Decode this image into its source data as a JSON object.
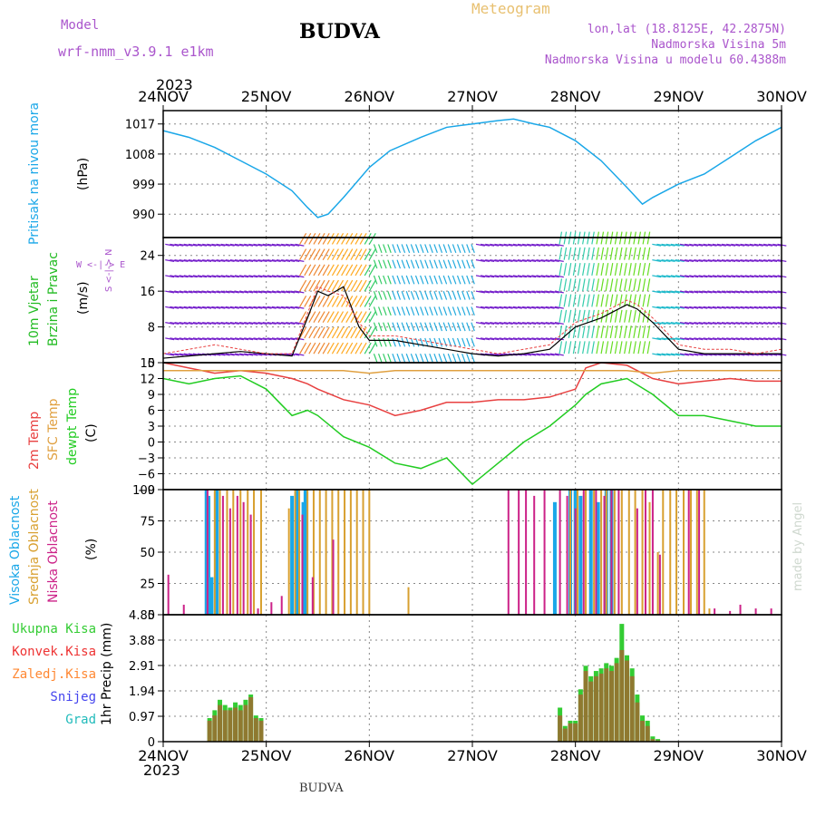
{
  "header": {
    "model_label": "Model",
    "model_name": "wrf-nmm_v3.9.1 e1km",
    "title": "BUDVA",
    "meteogram_label": "Meteogram",
    "lonlat": "lon,lat (18.8125E, 42.2875N)",
    "altitude": "Nadmorska Visina 5m",
    "model_altitude": "Nadmorska Visina u modelu 60.4388m",
    "footer_title": "BUDVA",
    "watermark": "made by Angel"
  },
  "colors": {
    "pressure": "#1aa7e8",
    "wind_label": "#22bb22",
    "temp2m": "#e84040",
    "sfc": "#e0a040",
    "dewpt": "#22cc22",
    "high_cloud": "#1aa7e8",
    "mid_cloud": "#d8a030",
    "low_cloud": "#cc2288",
    "total_precip": "#33cc33",
    "conv_precip": "#ee3333",
    "freezing": "#ff8833",
    "snow": "#4444ee",
    "hail": "#22bbbb",
    "model_text": "#aa55cc",
    "meteogram_text": "#e8c070"
  },
  "chart_data": [
    {
      "type": "line",
      "panel": "pressure",
      "ylabel_main": "Pritisak na nivou mora",
      "ylabel_unit": "(hPa)",
      "year_top": "2023",
      "year_bottom": "2023",
      "x_ticks": [
        "24NOV",
        "25NOV",
        "26NOV",
        "27NOV",
        "28NOV",
        "29NOV",
        "30NOV"
      ],
      "yticks": [
        "1017",
        "1008",
        "999",
        "990"
      ],
      "ylim": [
        983,
        1021
      ],
      "x": [
        0,
        0.25,
        0.5,
        0.75,
        1.0,
        1.25,
        1.4,
        1.5,
        1.6,
        1.75,
        2.0,
        2.2,
        2.5,
        2.75,
        3.0,
        3.25,
        3.4,
        3.6,
        3.75,
        4.0,
        4.25,
        4.5,
        4.65,
        4.75,
        5.0,
        5.25,
        5.5,
        5.75,
        6.0
      ],
      "values": [
        1015,
        1013,
        1010,
        1006,
        1002,
        997,
        992,
        989,
        990,
        995,
        1004,
        1009,
        1013,
        1016,
        1017,
        1018,
        1018.5,
        1017,
        1016,
        1012,
        1006,
        998,
        993,
        995,
        999,
        1002,
        1007,
        1012,
        1016
      ]
    },
    {
      "type": "line",
      "panel": "wind",
      "ylabel_main": "10m Vjetar",
      "ylabel_sub": "Brzina i Pravac",
      "ylabel_unit": "(m/s)",
      "compass": "W <-|-> E",
      "compass_v": "S <-|-> N",
      "yticks": [
        "24",
        "16",
        "8",
        "0"
      ],
      "ylim": [
        0,
        28
      ],
      "x": [
        0,
        0.25,
        0.5,
        0.75,
        1.0,
        1.25,
        1.4,
        1.5,
        1.6,
        1.75,
        1.9,
        2.0,
        2.25,
        2.5,
        2.75,
        3.0,
        3.25,
        3.5,
        3.75,
        4.0,
        4.25,
        4.5,
        4.6,
        4.75,
        5.0,
        5.25,
        5.5,
        5.75,
        6.0
      ],
      "series": [
        {
          "values": [
            1,
            1.5,
            2,
            2.5,
            2,
            1.5,
            10,
            16,
            15,
            17,
            8,
            5,
            5,
            4,
            3,
            2,
            1.5,
            2,
            3,
            8,
            10,
            13,
            12,
            9,
            3,
            2,
            2,
            2,
            2
          ]
        },
        {
          "values": [
            2,
            3,
            4,
            3,
            2,
            2,
            11,
            17,
            16,
            15,
            9,
            6,
            6,
            5,
            4,
            3,
            2,
            3,
            4,
            9,
            11,
            14,
            13,
            10,
            4,
            3,
            3,
            2,
            3
          ]
        }
      ]
    },
    {
      "type": "line",
      "panel": "temperature",
      "ylabel_a": "2m Temp",
      "ylabel_b": "SFC Temp",
      "ylabel_c": "dewpt Temp",
      "ylabel_unit": "(C)",
      "yticks": [
        "15",
        "12",
        "9",
        "6",
        "3",
        "0",
        "-3",
        "-6",
        "-9"
      ],
      "ylim": [
        -9,
        15
      ],
      "x": [
        0,
        0.25,
        0.5,
        0.75,
        1.0,
        1.25,
        1.4,
        1.5,
        1.75,
        2.0,
        2.25,
        2.5,
        2.75,
        3.0,
        3.25,
        3.5,
        3.75,
        4.0,
        4.1,
        4.25,
        4.5,
        4.75,
        5.0,
        5.25,
        5.5,
        5.75,
        6.0
      ],
      "series": [
        {
          "name": "2m",
          "values": [
            15,
            14,
            13,
            13.5,
            13,
            12,
            11,
            10,
            8,
            7,
            5,
            6,
            7.5,
            7.5,
            8,
            8,
            8.5,
            10,
            14,
            15,
            14.5,
            12,
            11,
            11.5,
            12,
            11.5,
            11.5
          ]
        },
        {
          "name": "sfc",
          "values": [
            13.5,
            13.5,
            13.5,
            13.5,
            13.5,
            13.5,
            13.5,
            13.5,
            13.5,
            13,
            13.5,
            13.5,
            13.5,
            13.5,
            13.5,
            13.5,
            13.5,
            13.5,
            13.5,
            13.5,
            13.5,
            13,
            13.5,
            13.5,
            13.5,
            13.5,
            13.5
          ]
        },
        {
          "name": "dew",
          "values": [
            12,
            11,
            12,
            12.5,
            10,
            5,
            6,
            5,
            1,
            -1,
            -4,
            -5,
            -3,
            -8,
            -4,
            0,
            3,
            7,
            9,
            11,
            12,
            9,
            5,
            5,
            4,
            3,
            3
          ]
        }
      ]
    },
    {
      "type": "bar",
      "panel": "cloud",
      "ylabel_a": "Visoka Oblacnost",
      "ylabel_b": "Srednja Oblacnost",
      "ylabel_c": "Niska Oblacnost",
      "ylabel_unit": "(%)",
      "yticks": [
        "100",
        "75",
        "50",
        "25",
        "0"
      ],
      "ylim": [
        0,
        100
      ],
      "series": [
        {
          "name": "high",
          "x": [
            0.42,
            0.44,
            0.47,
            0.52,
            1.25,
            1.3,
            1.36,
            1.38,
            3.8,
            3.95,
            4.0,
            4.05,
            4.15,
            4.22,
            4.3,
            4.35
          ],
          "values": [
            100,
            95,
            30,
            100,
            95,
            100,
            90,
            100,
            90,
            100,
            100,
            95,
            100,
            90,
            100,
            100
          ]
        },
        {
          "name": "mid",
          "x": [
            0.5,
            0.55,
            0.62,
            0.68,
            0.75,
            0.82,
            0.88,
            0.95,
            1.22,
            1.28,
            1.32,
            1.4,
            1.46,
            1.52,
            1.58,
            1.64,
            1.7,
            1.76,
            1.82,
            1.88,
            1.94,
            2.0,
            2.38,
            3.95,
            4.02,
            4.1,
            4.18,
            4.25,
            4.3,
            4.38,
            4.45,
            4.52,
            4.58,
            4.65,
            4.72,
            4.8,
            4.85,
            4.92,
            4.98,
            5.05,
            5.12,
            5.18,
            5.25,
            5.3
          ],
          "values": [
            100,
            100,
            100,
            100,
            100,
            100,
            100,
            100,
            85,
            100,
            100,
            100,
            100,
            100,
            100,
            100,
            100,
            100,
            100,
            100,
            100,
            100,
            22,
            100,
            100,
            100,
            100,
            100,
            100,
            100,
            100,
            100,
            100,
            100,
            90,
            50,
            100,
            100,
            100,
            100,
            100,
            100,
            100,
            5
          ]
        },
        {
          "name": "low",
          "x": [
            0.05,
            0.2,
            0.43,
            0.58,
            0.65,
            0.72,
            0.78,
            0.85,
            0.92,
            1.05,
            1.15,
            1.35,
            1.45,
            1.65,
            3.35,
            3.45,
            3.52,
            3.6,
            3.7,
            3.85,
            3.92,
            4.0,
            4.08,
            4.2,
            4.28,
            4.35,
            4.42,
            4.6,
            4.68,
            4.75,
            4.82,
            5.1,
            5.2,
            5.35,
            5.5,
            5.6,
            5.75,
            5.9
          ],
          "values": [
            32,
            8,
            100,
            95,
            85,
            95,
            90,
            80,
            5,
            10,
            15,
            80,
            30,
            60,
            100,
            100,
            100,
            95,
            100,
            100,
            95,
            85,
            100,
            100,
            95,
            100,
            100,
            85,
            100,
            100,
            48,
            100,
            100,
            5,
            3,
            8,
            5,
            5
          ]
        }
      ]
    },
    {
      "type": "bar",
      "panel": "precip",
      "legend": [
        "Ukupna Kisa",
        "Konvek.Kisa",
        "Zaledj.Kisa",
        "Snijeg",
        "Grad"
      ],
      "ylabel_unit": "1hr Precip (mm)",
      "yticks": [
        "4.85",
        "3.88",
        "2.91",
        "1.94",
        "0.97",
        "0"
      ],
      "ylim": [
        0,
        4.85
      ],
      "x_ticks": [
        "24NOV",
        "25NOV",
        "26NOV",
        "27NOV",
        "28NOV",
        "29NOV",
        "30NOV"
      ],
      "x": [
        0.45,
        0.5,
        0.55,
        0.6,
        0.65,
        0.7,
        0.75,
        0.8,
        0.85,
        0.9,
        0.95,
        3.85,
        3.9,
        3.95,
        4.0,
        4.05,
        4.1,
        4.15,
        4.2,
        4.25,
        4.3,
        4.35,
        4.4,
        4.45,
        4.5,
        4.55,
        4.6,
        4.65,
        4.7,
        4.75,
        4.8
      ],
      "series": [
        {
          "name": "total",
          "values": [
            0.9,
            1.2,
            1.6,
            1.4,
            1.3,
            1.5,
            1.4,
            1.6,
            1.8,
            1.0,
            0.9,
            1.3,
            0.6,
            0.8,
            0.8,
            2.0,
            2.9,
            2.5,
            2.7,
            2.8,
            3.0,
            2.9,
            3.2,
            4.5,
            3.3,
            2.8,
            1.8,
            1.0,
            0.8,
            0.2,
            0.1
          ]
        },
        {
          "name": "conv",
          "values": [
            0.8,
            1.0,
            1.4,
            1.2,
            1.2,
            1.3,
            1.2,
            1.4,
            1.7,
            0.9,
            0.8,
            1.0,
            0.5,
            0.7,
            0.7,
            1.8,
            2.7,
            2.3,
            2.5,
            2.6,
            2.8,
            2.7,
            3.0,
            3.5,
            3.1,
            2.5,
            1.5,
            0.8,
            0.6,
            0.1,
            0.05
          ]
        }
      ]
    }
  ]
}
